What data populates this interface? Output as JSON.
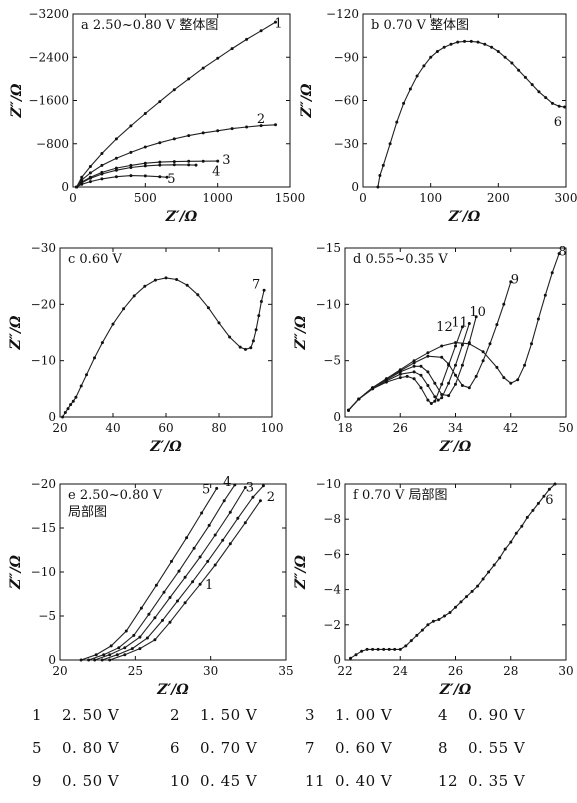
{
  "chart_data": [
    {
      "id": "a",
      "type": "line",
      "title": "a  2.50~0.80 V 整体图",
      "xlabel": "Z′/Ω",
      "ylabel": "Z″/Ω",
      "xlim": [
        0,
        1500
      ],
      "ylim": [
        0,
        -3200
      ],
      "xticks": [
        0,
        500,
        1000,
        1500
      ],
      "yticks": [
        0,
        -800,
        -1600,
        -2400,
        -3200
      ],
      "series": [
        {
          "name": "1",
          "x": [
            25,
            60,
            120,
            200,
            300,
            400,
            500,
            600,
            700,
            800,
            900,
            1000,
            1100,
            1200,
            1300,
            1400
          ],
          "y": [
            0,
            -180,
            -380,
            -620,
            -890,
            -1130,
            -1360,
            -1580,
            -1800,
            -2000,
            -2200,
            -2380,
            -2560,
            -2730,
            -2890,
            -3050
          ]
        },
        {
          "name": "2",
          "x": [
            25,
            60,
            120,
            200,
            300,
            400,
            500,
            600,
            700,
            800,
            900,
            1000,
            1100,
            1200,
            1300,
            1400
          ],
          "y": [
            0,
            -130,
            -260,
            -400,
            -530,
            -640,
            -740,
            -820,
            -890,
            -950,
            -1000,
            -1040,
            -1080,
            -1110,
            -1135,
            -1150
          ]
        },
        {
          "name": "3",
          "x": [
            25,
            60,
            120,
            200,
            300,
            400,
            500,
            600,
            700,
            800,
            900,
            1000
          ],
          "y": [
            0,
            -90,
            -180,
            -270,
            -350,
            -400,
            -440,
            -460,
            -470,
            -475,
            -478,
            -480
          ]
        },
        {
          "name": "4",
          "x": [
            25,
            60,
            120,
            200,
            300,
            400,
            500,
            600,
            700,
            800,
            850
          ],
          "y": [
            0,
            -80,
            -160,
            -240,
            -310,
            -360,
            -390,
            -405,
            -410,
            -408,
            -405
          ]
        },
        {
          "name": "5",
          "x": [
            25,
            60,
            120,
            200,
            300,
            400,
            500,
            600,
            650
          ],
          "y": [
            0,
            -50,
            -100,
            -150,
            -190,
            -210,
            -205,
            -190,
            -180
          ]
        }
      ]
    },
    {
      "id": "b",
      "type": "line",
      "title": "b  0.70 V 整体图",
      "xlabel": "Z′/Ω",
      "ylabel": "Z″/Ω",
      "xlim": [
        0,
        300
      ],
      "ylim": [
        0,
        -120
      ],
      "xticks": [
        0,
        100,
        200,
        300
      ],
      "yticks": [
        0,
        -30,
        -60,
        -90,
        -120
      ],
      "series": [
        {
          "name": "6",
          "x": [
            22,
            25,
            30,
            40,
            50,
            60,
            70,
            80,
            90,
            100,
            110,
            120,
            130,
            140,
            150,
            160,
            170,
            180,
            190,
            200,
            210,
            220,
            230,
            240,
            250,
            260,
            270,
            280,
            290,
            298
          ],
          "y": [
            0,
            -8,
            -15,
            -30,
            -45,
            -58,
            -68,
            -77,
            -84,
            -90,
            -94,
            -97,
            -99,
            -100.5,
            -101,
            -101,
            -100.5,
            -99,
            -97,
            -94,
            -90,
            -86,
            -81,
            -76,
            -71,
            -66,
            -62,
            -58,
            -56,
            -55.5
          ]
        }
      ]
    },
    {
      "id": "c",
      "type": "line",
      "title": "c  0.60 V",
      "xlabel": "Z′/Ω",
      "ylabel": "Z″/Ω",
      "xlim": [
        20,
        100
      ],
      "ylim": [
        0,
        -30
      ],
      "xticks": [
        20,
        40,
        60,
        80,
        100
      ],
      "yticks": [
        0,
        -10,
        -20,
        -30
      ],
      "series": [
        {
          "name": "7",
          "x": [
            21,
            22,
            23,
            24,
            25,
            26,
            28,
            30,
            33,
            36,
            40,
            44,
            48,
            52,
            56,
            60,
            64,
            68,
            72,
            76,
            80,
            84,
            88,
            90,
            92,
            93,
            94,
            95,
            96,
            97
          ],
          "y": [
            0,
            -0.8,
            -1.5,
            -2.2,
            -2.8,
            -3.5,
            -5.5,
            -7.5,
            -10.5,
            -13.2,
            -16.5,
            -19.2,
            -21.5,
            -23.2,
            -24.3,
            -24.7,
            -24.4,
            -23.4,
            -21.7,
            -19.4,
            -16.7,
            -14.2,
            -12.4,
            -12.0,
            -12.3,
            -13.5,
            -15.5,
            -18,
            -20.5,
            -22.5
          ]
        }
      ]
    },
    {
      "id": "d",
      "type": "line",
      "title": "d  0.55~0.35 V",
      "xlabel": "Z′/Ω",
      "ylabel": "Z″/Ω",
      "xlim": [
        18,
        50
      ],
      "ylim": [
        0,
        -15
      ],
      "xticks": [
        18,
        26,
        34,
        42,
        50
      ],
      "yticks": [
        0,
        -5,
        -10,
        -15
      ],
      "series": [
        {
          "name": "8",
          "x": [
            18.5,
            20,
            22,
            24,
            26,
            28,
            30,
            32,
            34,
            36,
            38,
            40,
            41,
            42,
            43,
            44,
            45,
            46,
            47,
            48,
            49
          ],
          "y": [
            -0.6,
            -1.6,
            -2.6,
            -3.4,
            -4.2,
            -5.0,
            -5.7,
            -6.3,
            -6.6,
            -6.5,
            -5.8,
            -4.4,
            -3.5,
            -3.0,
            -3.3,
            -4.6,
            -6.5,
            -8.7,
            -10.8,
            -12.8,
            -14.5
          ]
        },
        {
          "name": "9",
          "x": [
            18.5,
            20,
            22,
            24,
            26,
            28,
            30,
            32,
            33,
            34,
            35,
            36,
            37,
            38,
            39,
            40,
            41,
            42
          ],
          "y": [
            -0.6,
            -1.6,
            -2.6,
            -3.4,
            -4.1,
            -4.8,
            -5.4,
            -5.3,
            -4.7,
            -3.7,
            -2.8,
            -2.6,
            -3.6,
            -5.0,
            -6.5,
            -8.2,
            -10.0,
            -12.0
          ]
        },
        {
          "name": "10",
          "x": [
            18.5,
            20,
            22,
            24,
            26,
            28,
            29,
            30,
            31,
            32,
            33,
            34,
            35,
            36,
            37
          ],
          "y": [
            -0.6,
            -1.6,
            -2.6,
            -3.3,
            -4.0,
            -4.5,
            -4.5,
            -4.0,
            -3.0,
            -2.0,
            -1.9,
            -2.9,
            -4.6,
            -6.6,
            -8.9
          ]
        },
        {
          "name": "11",
          "x": [
            18.5,
            20,
            22,
            24,
            26,
            28,
            29,
            30,
            31,
            31.5,
            32,
            33,
            34,
            35,
            36
          ],
          "y": [
            -0.6,
            -1.6,
            -2.5,
            -3.2,
            -3.8,
            -4.0,
            -3.7,
            -2.8,
            -1.8,
            -1.5,
            -1.7,
            -3.0,
            -4.6,
            -6.4,
            -8.3
          ]
        },
        {
          "name": "12",
          "x": [
            18.5,
            20,
            22,
            24,
            26,
            27,
            28,
            29,
            30,
            30.5,
            31,
            32,
            33,
            34,
            35
          ],
          "y": [
            -0.6,
            -1.6,
            -2.5,
            -3.1,
            -3.5,
            -3.6,
            -3.4,
            -2.6,
            -1.5,
            -1.2,
            -1.4,
            -2.9,
            -4.6,
            -6.3,
            -8.0
          ]
        }
      ]
    },
    {
      "id": "e",
      "type": "line",
      "title": "e  2.50~0.80 V",
      "subtitle": "局部图",
      "xlabel": "Z′/Ω",
      "ylabel": "Z″/Ω",
      "xlim": [
        20,
        35
      ],
      "ylim": [
        0,
        -20
      ],
      "xticks": [
        20,
        25,
        30,
        35
      ],
      "yticks": [
        0,
        -5,
        -10,
        -15,
        -20
      ],
      "series": [
        {
          "name": "1",
          "x": [
            23.3,
            24.3,
            25.3,
            26.3,
            27.3,
            28.3,
            29.3,
            30.3,
            31.3,
            32.3,
            33.3
          ],
          "y": [
            0,
            -0.6,
            -1.3,
            -2.3,
            -4.3,
            -6.5,
            -8.6,
            -10.8,
            -13.2,
            -15.6,
            -18.1
          ]
        },
        {
          "name": "2",
          "x": [
            22.8,
            23.8,
            24.8,
            25.8,
            26.8,
            27.8,
            28.8,
            29.8,
            30.8,
            31.8,
            32.8,
            33.5
          ],
          "y": [
            0,
            -0.6,
            -1.3,
            -2.5,
            -4.5,
            -6.7,
            -8.9,
            -11.2,
            -13.6,
            -16.1,
            -18.5,
            -19.8
          ]
        },
        {
          "name": "3",
          "x": [
            22.3,
            23.3,
            24.3,
            25.3,
            26.3,
            27.3,
            28.3,
            29.3,
            30.3,
            31.3,
            32.3
          ],
          "y": [
            0,
            -0.6,
            -1.4,
            -2.6,
            -4.8,
            -7.1,
            -9.4,
            -11.7,
            -14.2,
            -16.8,
            -19.6
          ]
        },
        {
          "name": "4",
          "x": [
            21.9,
            22.9,
            23.9,
            24.9,
            25.9,
            26.9,
            27.9,
            28.9,
            29.9,
            30.9,
            31.6
          ],
          "y": [
            0,
            -0.6,
            -1.4,
            -2.8,
            -5.2,
            -7.7,
            -10.1,
            -12.7,
            -15.3,
            -18.1,
            -19.9
          ]
        },
        {
          "name": "5",
          "x": [
            21.4,
            22.4,
            23.4,
            24.4,
            25.4,
            26.4,
            27.4,
            28.4,
            29.4,
            30.4
          ],
          "y": [
            0,
            -0.6,
            -1.6,
            -3.3,
            -5.9,
            -8.5,
            -11.2,
            -13.9,
            -16.7,
            -19.5
          ]
        }
      ]
    },
    {
      "id": "f",
      "type": "line",
      "title": "f  0.70 V 局部图",
      "xlabel": "Z′/Ω",
      "ylabel": "Z″/Ω",
      "xlim": [
        22,
        30
      ],
      "ylim": [
        0,
        -10
      ],
      "xticks": [
        22,
        24,
        26,
        28,
        30
      ],
      "yticks": [
        0,
        -2,
        -4,
        -6,
        -8,
        -10
      ],
      "series": [
        {
          "name": "6",
          "x": [
            22.2,
            22.4,
            22.6,
            22.8,
            23.0,
            23.2,
            23.4,
            23.6,
            23.8,
            24.0,
            24.2,
            24.4,
            24.6,
            24.8,
            25.0,
            25.2,
            25.4,
            25.6,
            25.8,
            26.0,
            26.2,
            26.4,
            26.6,
            26.8,
            27.0,
            27.2,
            27.4,
            27.6,
            27.8,
            28.0,
            28.2,
            28.4,
            28.6,
            28.8,
            29.0,
            29.2,
            29.4,
            29.6
          ],
          "y": [
            -0.1,
            -0.3,
            -0.5,
            -0.6,
            -0.6,
            -0.6,
            -0.6,
            -0.6,
            -0.6,
            -0.6,
            -0.8,
            -1.1,
            -1.4,
            -1.7,
            -2.0,
            -2.2,
            -2.3,
            -2.5,
            -2.7,
            -3.0,
            -3.3,
            -3.6,
            -3.9,
            -4.2,
            -4.6,
            -5.0,
            -5.4,
            -5.8,
            -6.3,
            -6.7,
            -7.2,
            -7.6,
            -8.1,
            -8.5,
            -8.9,
            -9.3,
            -9.7,
            -10.0
          ]
        }
      ]
    }
  ],
  "legend": [
    {
      "num": "1",
      "value": "2. 50 V"
    },
    {
      "num": "2",
      "value": "1. 50 V"
    },
    {
      "num": "3",
      "value": "1. 00 V"
    },
    {
      "num": "4",
      "value": "0. 90 V"
    },
    {
      "num": "5",
      "value": "0. 80 V"
    },
    {
      "num": "6",
      "value": "0. 70 V"
    },
    {
      "num": "7",
      "value": "0. 60 V"
    },
    {
      "num": "8",
      "value": "0. 55 V"
    },
    {
      "num": "9",
      "value": "0. 50 V"
    },
    {
      "num": "10",
      "value": "0. 45 V"
    },
    {
      "num": "11",
      "value": "0. 40 V"
    },
    {
      "num": "12",
      "value": "0. 35 V"
    }
  ]
}
